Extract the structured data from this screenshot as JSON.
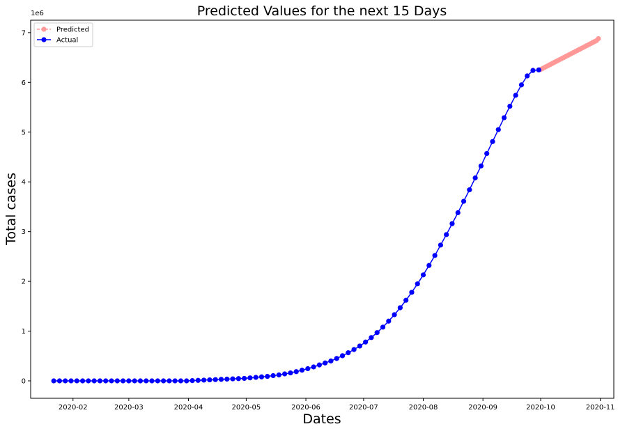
{
  "chart_data": {
    "type": "line",
    "title": "Predicted Values for the next 15 Days",
    "xlabel": "Dates",
    "ylabel": "Total cases",
    "y_offset_text": "1e6",
    "y_scale_factor": 1000000,
    "xlim": [
      "2020-01-10",
      "2020-11-08"
    ],
    "ylim": [
      -350000,
      7250000
    ],
    "x_ticks": [
      "2020-02-01",
      "2020-03-01",
      "2020-04-01",
      "2020-05-01",
      "2020-06-01",
      "2020-07-01",
      "2020-08-01",
      "2020-09-01",
      "2020-10-01",
      "2020-11-01"
    ],
    "x_tick_labels": [
      "2020-02",
      "2020-03",
      "2020-04",
      "2020-05",
      "2020-06",
      "2020-07",
      "2020-08",
      "2020-09",
      "2020-10",
      "2020-11"
    ],
    "y_ticks": [
      0,
      1000000,
      2000000,
      3000000,
      4000000,
      5000000,
      6000000,
      7000000
    ],
    "y_tick_labels": [
      "0",
      "1",
      "2",
      "3",
      "4",
      "5",
      "6",
      "7"
    ],
    "grid": false,
    "legend_position": "top-left",
    "series": [
      {
        "name": "Predicted",
        "color": "#ff9896",
        "line_style": "dashed",
        "marker": "circle",
        "x": [
          "2020-10-01",
          "2020-10-02",
          "2020-10-03",
          "2020-10-04",
          "2020-10-05",
          "2020-10-06",
          "2020-10-07",
          "2020-10-08",
          "2020-10-09",
          "2020-10-10",
          "2020-10-11",
          "2020-10-12",
          "2020-10-13",
          "2020-10-14",
          "2020-10-15",
          "2020-10-16",
          "2020-10-17",
          "2020-10-18",
          "2020-10-19",
          "2020-10-20",
          "2020-10-21",
          "2020-10-22",
          "2020-10-23",
          "2020-10-24",
          "2020-10-25",
          "2020-10-26",
          "2020-10-27",
          "2020-10-28",
          "2020-10-29",
          "2020-10-30",
          "2020-10-31"
        ],
        "y": [
          6260000,
          6280000,
          6300000,
          6320000,
          6340000,
          6360000,
          6380000,
          6400000,
          6420000,
          6440000,
          6460000,
          6480000,
          6500000,
          6520000,
          6540000,
          6560000,
          6580000,
          6600000,
          6620000,
          6640000,
          6660000,
          6680000,
          6700000,
          6720000,
          6740000,
          6760000,
          6780000,
          6800000,
          6820000,
          6840000,
          6880000
        ]
      },
      {
        "name": "Actual",
        "color": "#0000ff",
        "line_style": "solid",
        "marker": "circle",
        "x": [
          "2020-01-22",
          "2020-01-25",
          "2020-01-28",
          "2020-01-31",
          "2020-02-03",
          "2020-02-06",
          "2020-02-09",
          "2020-02-12",
          "2020-02-15",
          "2020-02-18",
          "2020-02-21",
          "2020-02-24",
          "2020-02-27",
          "2020-03-01",
          "2020-03-04",
          "2020-03-07",
          "2020-03-10",
          "2020-03-13",
          "2020-03-16",
          "2020-03-19",
          "2020-03-22",
          "2020-03-25",
          "2020-03-28",
          "2020-03-31",
          "2020-04-03",
          "2020-04-06",
          "2020-04-09",
          "2020-04-12",
          "2020-04-15",
          "2020-04-18",
          "2020-04-21",
          "2020-04-24",
          "2020-04-27",
          "2020-04-30",
          "2020-05-03",
          "2020-05-06",
          "2020-05-09",
          "2020-05-12",
          "2020-05-15",
          "2020-05-18",
          "2020-05-21",
          "2020-05-24",
          "2020-05-27",
          "2020-05-30",
          "2020-06-02",
          "2020-06-05",
          "2020-06-08",
          "2020-06-11",
          "2020-06-14",
          "2020-06-17",
          "2020-06-20",
          "2020-06-23",
          "2020-06-26",
          "2020-06-29",
          "2020-07-02",
          "2020-07-05",
          "2020-07-08",
          "2020-07-11",
          "2020-07-14",
          "2020-07-17",
          "2020-07-20",
          "2020-07-23",
          "2020-07-26",
          "2020-07-29",
          "2020-08-01",
          "2020-08-04",
          "2020-08-07",
          "2020-08-10",
          "2020-08-13",
          "2020-08-16",
          "2020-08-19",
          "2020-08-22",
          "2020-08-25",
          "2020-08-28",
          "2020-08-31",
          "2020-09-03",
          "2020-09-06",
          "2020-09-09",
          "2020-09-12",
          "2020-09-15",
          "2020-09-18",
          "2020-09-21",
          "2020-09-24",
          "2020-09-27",
          "2020-09-30"
        ],
        "y": [
          0,
          0,
          0,
          0,
          0,
          0,
          0,
          0,
          0,
          0,
          0,
          0,
          0,
          0,
          0,
          0,
          0,
          0,
          0,
          0,
          0,
          0,
          0,
          0,
          5000,
          10000,
          15000,
          20000,
          25000,
          30000,
          35000,
          40000,
          45000,
          50000,
          60000,
          70000,
          80000,
          90000,
          105000,
          120000,
          140000,
          160000,
          185000,
          215000,
          245000,
          280000,
          320000,
          360000,
          400000,
          450000,
          505000,
          565000,
          630000,
          700000,
          780000,
          870000,
          970000,
          1080000,
          1200000,
          1330000,
          1470000,
          1620000,
          1780000,
          1950000,
          2130000,
          2320000,
          2520000,
          2730000,
          2940000,
          3160000,
          3380000,
          3610000,
          3840000,
          4080000,
          4320000,
          4570000,
          4810000,
          5050000,
          5290000,
          5520000,
          5740000,
          5950000,
          6130000,
          6240000,
          6250000
        ]
      }
    ]
  }
}
